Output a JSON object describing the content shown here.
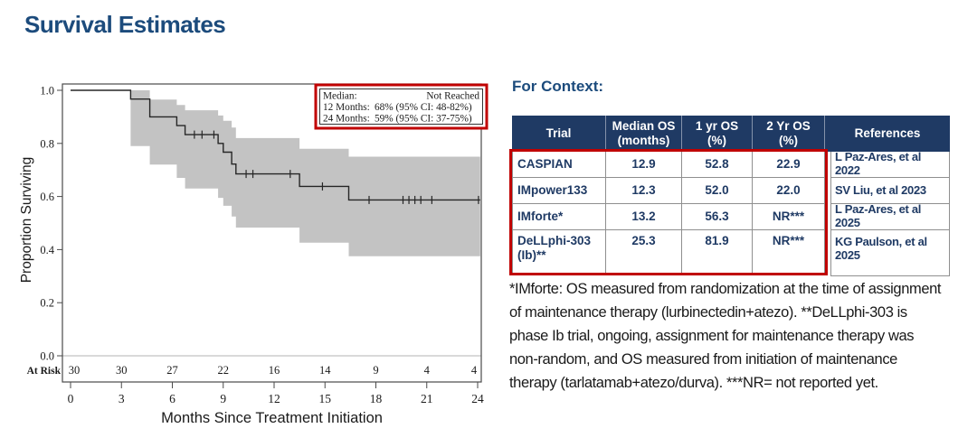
{
  "page": {
    "title": "Survival Estimates"
  },
  "colors": {
    "accent_navy": "#1c4b7c",
    "table_header_bg": "#1f3a64",
    "table_text_navy": "#1f3a64",
    "highlight_red": "#c00000",
    "ci_band_gray": "#c3c3c3",
    "curve_color": "#262626"
  },
  "chart_data": [
    {
      "type": "line",
      "subtype": "kaplan_meier_step",
      "title": "",
      "xlabel": "Months Since Treatment Initiation",
      "ylabel": "Proportion Surviving",
      "xlim": [
        0,
        24
      ],
      "ylim": [
        0.0,
        1.0
      ],
      "xticks": [
        0,
        3,
        6,
        9,
        12,
        15,
        18,
        21,
        24
      ],
      "yticks": [
        0.0,
        0.2,
        0.4,
        0.6,
        0.8,
        1.0
      ],
      "grid": false,
      "legend_position": "top-right",
      "end_time": 24.15,
      "survival_steps": [
        [
          0,
          1.0
        ],
        [
          3.54,
          0.967
        ],
        [
          4.67,
          0.9
        ],
        [
          6.26,
          0.867
        ],
        [
          6.75,
          0.833
        ],
        [
          8.7,
          0.8
        ],
        [
          9.0,
          0.767
        ],
        [
          9.5,
          0.722
        ],
        [
          9.75,
          0.685
        ],
        [
          13.5,
          0.638
        ],
        [
          16.4,
          0.587
        ]
      ],
      "ci_steps": [
        [
          3.54,
          0.79,
          1.0
        ],
        [
          4.67,
          0.72,
          0.965
        ],
        [
          6.26,
          0.67,
          0.945
        ],
        [
          6.75,
          0.63,
          0.925
        ],
        [
          8.7,
          0.595,
          0.905
        ],
        [
          9.0,
          0.565,
          0.885
        ],
        [
          9.5,
          0.525,
          0.86
        ],
        [
          9.75,
          0.483,
          0.82
        ],
        [
          13.5,
          0.426,
          0.78
        ],
        [
          16.4,
          0.375,
          0.75
        ]
      ],
      "censor_marks": [
        [
          7.3,
          0.833
        ],
        [
          7.75,
          0.833
        ],
        [
          8.45,
          0.833
        ],
        [
          10.35,
          0.685
        ],
        [
          10.75,
          0.685
        ],
        [
          12.95,
          0.685
        ],
        [
          14.85,
          0.638
        ],
        [
          17.6,
          0.587
        ],
        [
          19.6,
          0.587
        ],
        [
          19.95,
          0.587
        ],
        [
          20.3,
          0.587
        ],
        [
          20.65,
          0.587
        ],
        [
          21.3,
          0.587
        ],
        [
          24.05,
          0.587
        ]
      ],
      "at_risk": {
        "label": "At Risk",
        "times": [
          0,
          3,
          6,
          9,
          12,
          15,
          18,
          21,
          24
        ],
        "counts": [
          30,
          30,
          27,
          22,
          16,
          14,
          9,
          4,
          4
        ]
      },
      "annotation_box": {
        "rows": [
          {
            "label": "Median:",
            "value": "Not Reached",
            "value_align": "right"
          },
          {
            "label": "12 Months:",
            "value": "68% (95% CI: 48-82%)"
          },
          {
            "label": "24 Months:",
            "value": "59% (95% CI: 37-75%)"
          }
        ]
      }
    },
    {
      "type": "table",
      "title": "For Context:",
      "columns": [
        "Trial",
        "Median OS\n(months)",
        "1 yr OS\n(%)",
        "2 Yr OS\n(%)",
        "References"
      ],
      "rows": [
        [
          "CASPIAN",
          "12.9",
          "52.8",
          "22.9",
          "L Paz-Ares, et al 2022"
        ],
        [
          "IMpower133",
          "12.3",
          "52.0",
          "22.0",
          "SV Liu, et al 2023"
        ],
        [
          "IMforte*",
          "13.2",
          "56.3",
          "NR***",
          "L Paz-Ares, et al 2025"
        ],
        [
          "DeLLphi-303 (Ib)**",
          "25.3",
          "81.9",
          "NR***",
          "KG Paulson, et al 2025"
        ]
      ]
    }
  ],
  "footnote": {
    "lines": [
      "*IMforte: OS measured from randomization at the time of assignment",
      "of maintenance therapy (lurbinectedin+atezo). **DeLLphi-303 is",
      "phase Ib trial, ongoing, assignment for maintenance therapy was",
      "non-random, and OS measured from initiation of maintenance",
      "therapy (tarlatamab+atezo/durva). ***NR= not reported yet."
    ]
  }
}
